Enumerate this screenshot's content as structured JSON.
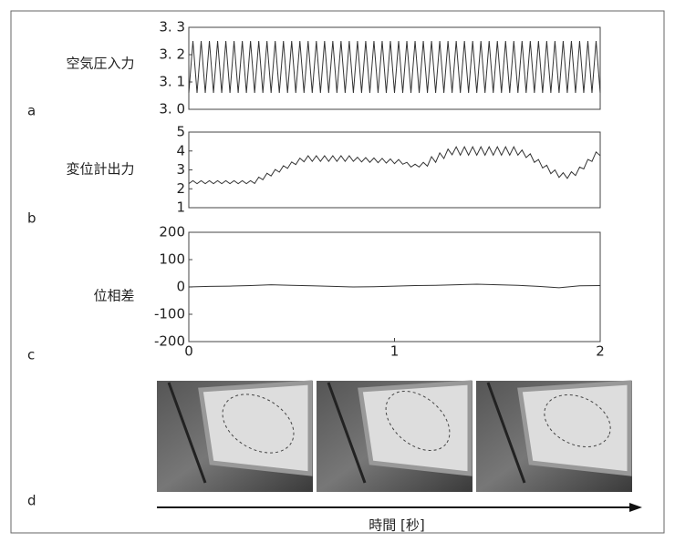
{
  "chart_data": [
    {
      "type": "line",
      "panel_label": "a",
      "ylabel": "空気圧入力",
      "xlim": [
        0,
        2
      ],
      "ylim": [
        3.0,
        3.3
      ],
      "yticks": [
        {
          "value": 3.0,
          "label": "3. 0"
        },
        {
          "value": 3.1,
          "label": "3. 1"
        },
        {
          "value": 3.2,
          "label": "3. 2"
        },
        {
          "value": 3.3,
          "label": "3. 3"
        }
      ],
      "color": "#333333",
      "x": [
        0,
        0.02,
        0.04,
        0.06,
        0.08,
        0.1,
        0.12,
        0.14,
        0.16,
        0.18,
        0.2,
        0.22,
        0.24,
        0.26,
        0.28,
        0.3,
        0.32,
        0.34,
        0.36,
        0.38,
        0.4,
        0.42,
        0.44,
        0.46,
        0.48,
        0.5,
        0.52,
        0.54,
        0.56,
        0.58,
        0.6,
        0.62,
        0.64,
        0.66,
        0.68,
        0.7,
        0.72,
        0.74,
        0.76,
        0.78,
        0.8,
        0.82,
        0.84,
        0.86,
        0.88,
        0.9,
        0.92,
        0.94,
        0.96,
        0.98,
        1,
        1.02,
        1.04,
        1.06,
        1.08,
        1.1,
        1.12,
        1.14,
        1.16,
        1.18,
        1.2,
        1.22,
        1.24,
        1.26,
        1.28,
        1.3,
        1.32,
        1.34,
        1.36,
        1.38,
        1.4,
        1.42,
        1.44,
        1.46,
        1.48,
        1.5,
        1.52,
        1.54,
        1.56,
        1.58,
        1.6,
        1.62,
        1.64,
        1.66,
        1.68,
        1.7,
        1.72,
        1.74,
        1.76,
        1.78,
        1.8,
        1.82,
        1.84,
        1.86,
        1.88,
        1.9,
        1.92,
        1.94,
        1.96,
        1.98,
        2
      ],
      "values": [
        3.06,
        3.25,
        3.06,
        3.25,
        3.06,
        3.25,
        3.06,
        3.25,
        3.06,
        3.25,
        3.06,
        3.25,
        3.06,
        3.25,
        3.06,
        3.25,
        3.06,
        3.25,
        3.06,
        3.25,
        3.06,
        3.25,
        3.06,
        3.25,
        3.06,
        3.25,
        3.06,
        3.25,
        3.06,
        3.25,
        3.06,
        3.25,
        3.06,
        3.25,
        3.06,
        3.25,
        3.06,
        3.25,
        3.06,
        3.25,
        3.06,
        3.25,
        3.06,
        3.25,
        3.06,
        3.25,
        3.06,
        3.25,
        3.06,
        3.25,
        3.06,
        3.25,
        3.06,
        3.25,
        3.06,
        3.25,
        3.06,
        3.25,
        3.06,
        3.25,
        3.06,
        3.25,
        3.06,
        3.25,
        3.06,
        3.25,
        3.06,
        3.25,
        3.06,
        3.25,
        3.06,
        3.25,
        3.06,
        3.25,
        3.06,
        3.25,
        3.06,
        3.25,
        3.06,
        3.25,
        3.06,
        3.25,
        3.06,
        3.25,
        3.06,
        3.25,
        3.06,
        3.25,
        3.06,
        3.25,
        3.06,
        3.25,
        3.06,
        3.25,
        3.06,
        3.25,
        3.06,
        3.25,
        3.06,
        3.25,
        3.06
      ]
    },
    {
      "type": "line",
      "panel_label": "b",
      "ylabel": "変位計出力",
      "xlim": [
        0,
        2
      ],
      "ylim": [
        1,
        5
      ],
      "yticks": [
        1,
        2,
        3,
        4,
        5
      ],
      "color": "#333333",
      "x": [
        0,
        0.02,
        0.04,
        0.06,
        0.08,
        0.1,
        0.12,
        0.14,
        0.16,
        0.18,
        0.2,
        0.22,
        0.24,
        0.26,
        0.28,
        0.3,
        0.32,
        0.34,
        0.36,
        0.38,
        0.4,
        0.42,
        0.44,
        0.46,
        0.48,
        0.5,
        0.52,
        0.54,
        0.56,
        0.58,
        0.6,
        0.62,
        0.64,
        0.66,
        0.68,
        0.7,
        0.72,
        0.74,
        0.76,
        0.78,
        0.8,
        0.82,
        0.84,
        0.86,
        0.88,
        0.9,
        0.92,
        0.94,
        0.96,
        0.98,
        1,
        1.02,
        1.04,
        1.06,
        1.08,
        1.1,
        1.12,
        1.14,
        1.16,
        1.18,
        1.2,
        1.22,
        1.24,
        1.26,
        1.28,
        1.3,
        1.32,
        1.34,
        1.36,
        1.38,
        1.4,
        1.42,
        1.44,
        1.46,
        1.48,
        1.5,
        1.52,
        1.54,
        1.56,
        1.58,
        1.6,
        1.62,
        1.64,
        1.66,
        1.68,
        1.7,
        1.72,
        1.74,
        1.76,
        1.78,
        1.8,
        1.82,
        1.84,
        1.86,
        1.88,
        1.9,
        1.92,
        1.94,
        1.96,
        1.98,
        2
      ],
      "values": [
        2.27,
        2.43,
        2.27,
        2.43,
        2.27,
        2.43,
        2.27,
        2.43,
        2.27,
        2.43,
        2.27,
        2.43,
        2.27,
        2.43,
        2.27,
        2.43,
        2.28,
        2.62,
        2.48,
        2.82,
        2.68,
        3.02,
        2.88,
        3.22,
        3.08,
        3.42,
        3.28,
        3.62,
        3.43,
        3.75,
        3.45,
        3.75,
        3.45,
        3.75,
        3.45,
        3.75,
        3.45,
        3.75,
        3.45,
        3.75,
        3.45,
        3.67,
        3.42,
        3.65,
        3.4,
        3.63,
        3.38,
        3.61,
        3.36,
        3.58,
        3.33,
        3.55,
        3.3,
        3.4,
        3.15,
        3.3,
        3.15,
        3.4,
        3.2,
        3.7,
        3.4,
        3.9,
        3.6,
        4.1,
        3.8,
        4.22,
        3.78,
        4.22,
        3.78,
        4.22,
        3.78,
        4.22,
        3.78,
        4.22,
        3.78,
        4.22,
        3.78,
        4.22,
        3.78,
        4.22,
        3.78,
        4.05,
        3.65,
        3.85,
        3.4,
        3.55,
        3.1,
        3.25,
        2.8,
        3.0,
        2.6,
        2.85,
        2.55,
        2.9,
        2.7,
        3.15,
        3.05,
        3.55,
        3.45,
        3.95,
        3.75
      ]
    },
    {
      "type": "line",
      "panel_label": "c",
      "ylabel": "位相差",
      "xlim": [
        0,
        2
      ],
      "ylim": [
        -200,
        200
      ],
      "yticks": [
        -200,
        -100,
        0,
        100,
        200
      ],
      "xticks": [
        0,
        1,
        2
      ],
      "color": "#333333",
      "x": [
        0,
        0.1,
        0.2,
        0.3,
        0.4,
        0.5,
        0.6,
        0.7,
        0.8,
        0.9,
        1,
        1.1,
        1.2,
        1.3,
        1.4,
        1.5,
        1.6,
        1.7,
        1.8,
        1.9,
        2
      ],
      "values": [
        0,
        2,
        3,
        5,
        8,
        6,
        4,
        2,
        0,
        1,
        3,
        5,
        6,
        8,
        10,
        8,
        6,
        2,
        -3,
        4,
        5
      ]
    }
  ],
  "figure": {
    "photo_panel_label": "d",
    "time_axis_label": "時間 [秒]"
  }
}
